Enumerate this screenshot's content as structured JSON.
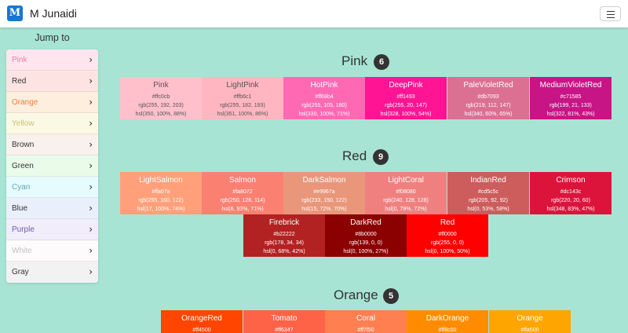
{
  "app": {
    "brand_icon_letter": "M",
    "brand_name": "M Junaidi"
  },
  "sidebar": {
    "title": "Jump to",
    "items": [
      {
        "label": "Pink",
        "bg": "#ffe6ee",
        "color": "#ec7aa3"
      },
      {
        "label": "Red",
        "bg": "#fde4e2",
        "color": "#333333"
      },
      {
        "label": "Orange",
        "bg": "#fdeede",
        "color": "#f07f3c"
      },
      {
        "label": "Yellow",
        "bg": "#fbf9e4",
        "color": "#c6c274"
      },
      {
        "label": "Brown",
        "bg": "#f9f1ed",
        "color": "#333333"
      },
      {
        "label": "Green",
        "bg": "#eafbea",
        "color": "#333333"
      },
      {
        "label": "Cyan",
        "bg": "#e6fbfd",
        "color": "#5fa8bd"
      },
      {
        "label": "Blue",
        "bg": "#e9f0fc",
        "color": "#333333"
      },
      {
        "label": "Purple",
        "bg": "#f1edfb",
        "color": "#6f5ba7"
      },
      {
        "label": "White",
        "bg": "#fdfbfb",
        "color": "#c2c2c2"
      },
      {
        "label": "Gray",
        "bg": "#f2f2f2",
        "color": "#333333"
      }
    ]
  },
  "sections": [
    {
      "title": "Pink",
      "count": "6",
      "colors": [
        {
          "name": "Pink",
          "hex": "#ffc0cb",
          "rgb": "rgb(255, 192, 203)",
          "hsl": "hsl(350, 100%, 88%)",
          "bg": "#ffc0cb",
          "text": "#555555"
        },
        {
          "name": "LightPink",
          "hex": "#ffb6c1",
          "rgb": "rgb(255, 182, 193)",
          "hsl": "hsl(351, 100%, 86%)",
          "bg": "#ffb6c1",
          "text": "#555555"
        },
        {
          "name": "HotPink",
          "hex": "#ff69b4",
          "rgb": "rgb(255, 105, 180)",
          "hsl": "hsl(330, 100%, 71%)",
          "bg": "#ff69b4",
          "text": "#ffffff"
        },
        {
          "name": "DeepPink",
          "hex": "#ff1493",
          "rgb": "rgb(255, 20, 147)",
          "hsl": "hsl(328, 100%, 54%)",
          "bg": "#ff1493",
          "text": "#ffffff"
        },
        {
          "name": "PaleVioletRed",
          "hex": "#db7093",
          "rgb": "rgb(219, 112, 147)",
          "hsl": "hsl(340, 60%, 65%)",
          "bg": "#db7093",
          "text": "#ffffff"
        },
        {
          "name": "MediumVioletRed",
          "hex": "#c71585",
          "rgb": "rgb(199, 21, 133)",
          "hsl": "hsl(322, 81%, 43%)",
          "bg": "#c71585",
          "text": "#ffffff"
        }
      ]
    },
    {
      "title": "Red",
      "count": "9",
      "colors": [
        {
          "name": "LightSalmon",
          "hex": "#ffa07a",
          "rgb": "rgb(255, 160, 122)",
          "hsl": "hsl(17, 100%, 74%)",
          "bg": "#ffa07a",
          "text": "#ffffff"
        },
        {
          "name": "Salmon",
          "hex": "#fa8072",
          "rgb": "rgb(250, 128, 114)",
          "hsl": "hsl(6, 93%, 71%)",
          "bg": "#fa8072",
          "text": "#ffffff"
        },
        {
          "name": "DarkSalmon",
          "hex": "#e9967a",
          "rgb": "rgb(233, 150, 122)",
          "hsl": "hsl(15, 72%, 70%)",
          "bg": "#e9967a",
          "text": "#ffffff"
        },
        {
          "name": "LightCoral",
          "hex": "#f08080",
          "rgb": "rgb(240, 128, 128)",
          "hsl": "hsl(0, 79%, 72%)",
          "bg": "#f08080",
          "text": "#ffffff"
        },
        {
          "name": "IndianRed",
          "hex": "#cd5c5c",
          "rgb": "rgb(205, 92, 92)",
          "hsl": "hsl(0, 53%, 58%)",
          "bg": "#cd5c5c",
          "text": "#ffffff"
        },
        {
          "name": "Crimson",
          "hex": "#dc143c",
          "rgb": "rgb(220, 20, 60)",
          "hsl": "hsl(348, 83%, 47%)",
          "bg": "#dc143c",
          "text": "#ffffff"
        },
        {
          "name": "Firebrick",
          "hex": "#b22222",
          "rgb": "rgb(178, 34, 34)",
          "hsl": "hsl(0, 68%, 42%)",
          "bg": "#b22222",
          "text": "#ffffff"
        },
        {
          "name": "DarkRed",
          "hex": "#8b0000",
          "rgb": "rgb(139, 0, 0)",
          "hsl": "hsl(0, 100%, 27%)",
          "bg": "#8b0000",
          "text": "#ffffff"
        },
        {
          "name": "Red",
          "hex": "#ff0000",
          "rgb": "rgb(255, 0, 0)",
          "hsl": "hsl(0, 100%, 50%)",
          "bg": "#ff0000",
          "text": "#ffffff"
        }
      ]
    },
    {
      "title": "Orange",
      "count": "5",
      "colors": [
        {
          "name": "OrangeRed",
          "hex": "#ff4500",
          "bg": "#ff4500",
          "text": "#ffffff"
        },
        {
          "name": "Tomato",
          "hex": "#ff6347",
          "bg": "#ff6347",
          "text": "#ffffff"
        },
        {
          "name": "Coral",
          "hex": "#ff7f50",
          "bg": "#ff7f50",
          "text": "#ffffff"
        },
        {
          "name": "DarkOrange",
          "hex": "#ff8c00",
          "bg": "#ff8c00",
          "text": "#ffffff"
        },
        {
          "name": "Orange",
          "hex": "#ffa500",
          "bg": "#ffa500",
          "text": "#ffffff"
        }
      ]
    }
  ]
}
